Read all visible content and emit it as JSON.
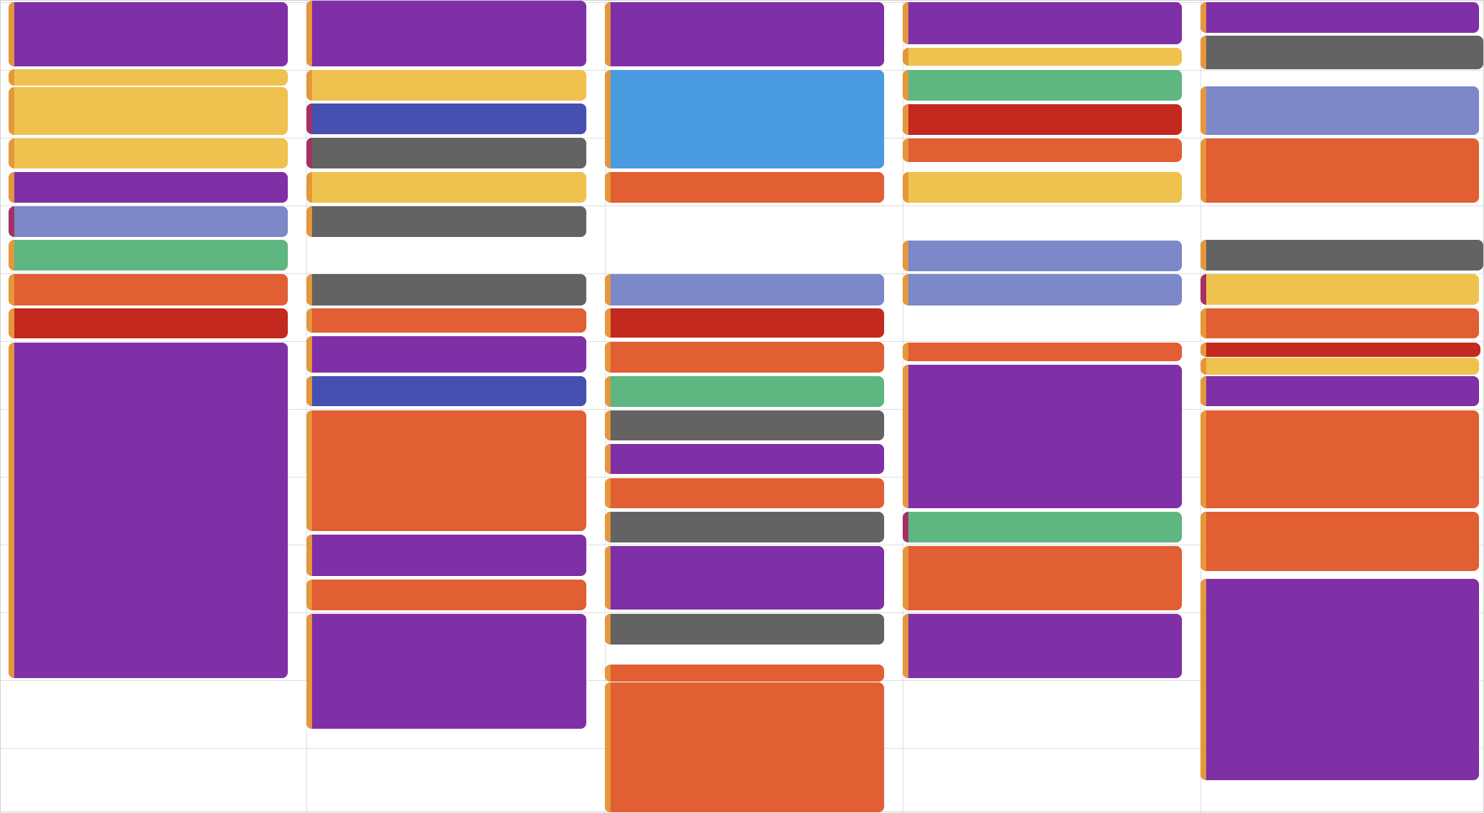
{
  "calendar": {
    "view": "week",
    "colors": {
      "purple": "#8030A6",
      "yellow": "#EFC14E",
      "blue": "#4550B0",
      "gray": "#636363",
      "sky": "#4A9AE0",
      "orange": "#E25E33",
      "green": "#5EB680",
      "red": "#C3291F",
      "lavender": "#7C88C8",
      "accent_orange": "#E4973B",
      "accent_magenta": "#A53064"
    },
    "days": [
      {
        "events": [
          {
            "color": "purple",
            "accent": "accent_orange"
          },
          {
            "color": "yellow",
            "accent": "accent_orange"
          },
          {
            "color": "yellow",
            "accent": "accent_orange"
          },
          {
            "color": "yellow",
            "accent": "accent_orange"
          },
          {
            "color": "purple",
            "accent": "accent_orange"
          },
          {
            "color": "lavender",
            "accent": "accent_magenta"
          },
          {
            "color": "green",
            "accent": "accent_orange"
          },
          {
            "color": "orange",
            "accent": "accent_orange"
          },
          {
            "color": "red",
            "accent": "accent_orange"
          },
          {
            "color": "purple",
            "accent": "accent_orange"
          }
        ]
      },
      {
        "events": [
          {
            "color": "purple",
            "accent": "accent_orange"
          },
          {
            "color": "yellow",
            "accent": "accent_orange"
          },
          {
            "color": "blue",
            "accent": "accent_magenta"
          },
          {
            "color": "gray",
            "accent": "accent_magenta"
          },
          {
            "color": "yellow",
            "accent": "accent_orange"
          },
          {
            "color": "gray",
            "accent": "accent_orange"
          },
          {
            "color": "gray",
            "accent": "accent_orange"
          },
          {
            "color": "orange",
            "accent": "accent_orange"
          },
          {
            "color": "purple",
            "accent": "accent_orange"
          },
          {
            "color": "blue",
            "accent": "accent_orange"
          },
          {
            "color": "orange",
            "accent": "accent_orange"
          },
          {
            "color": "purple",
            "accent": "accent_orange"
          },
          {
            "color": "orange",
            "accent": "accent_orange"
          },
          {
            "color": "purple",
            "accent": "accent_orange"
          }
        ]
      },
      {
        "events": [
          {
            "color": "purple",
            "accent": "accent_orange"
          },
          {
            "color": "sky",
            "accent": "accent_orange"
          },
          {
            "color": "orange",
            "accent": "accent_orange"
          },
          {
            "color": "lavender",
            "accent": "accent_orange"
          },
          {
            "color": "red",
            "accent": "accent_orange"
          },
          {
            "color": "orange",
            "accent": "accent_orange"
          },
          {
            "color": "green",
            "accent": "accent_orange"
          },
          {
            "color": "gray",
            "accent": "accent_orange"
          },
          {
            "color": "purple",
            "accent": "accent_orange"
          },
          {
            "color": "orange",
            "accent": "accent_orange"
          },
          {
            "color": "gray",
            "accent": "accent_orange"
          },
          {
            "color": "purple",
            "accent": "accent_orange"
          },
          {
            "color": "gray",
            "accent": "accent_orange"
          },
          {
            "color": "orange",
            "accent": "accent_orange"
          },
          {
            "color": "orange",
            "accent": "accent_orange"
          }
        ]
      },
      {
        "events": [
          {
            "color": "purple",
            "accent": "accent_orange"
          },
          {
            "color": "yellow",
            "accent": "accent_orange"
          },
          {
            "color": "green",
            "accent": "accent_orange"
          },
          {
            "color": "red",
            "accent": "accent_orange"
          },
          {
            "color": "orange",
            "accent": "accent_orange"
          },
          {
            "color": "yellow",
            "accent": "accent_orange"
          },
          {
            "color": "lavender",
            "accent": "accent_orange"
          },
          {
            "color": "lavender",
            "accent": "accent_orange"
          },
          {
            "color": "orange",
            "accent": "accent_orange"
          },
          {
            "color": "purple",
            "accent": "accent_orange"
          },
          {
            "color": "green",
            "accent": "accent_magenta"
          },
          {
            "color": "orange",
            "accent": "accent_orange"
          },
          {
            "color": "purple",
            "accent": "accent_orange"
          }
        ]
      },
      {
        "events": [
          {
            "color": "purple",
            "accent": "accent_orange"
          },
          {
            "color": "gray",
            "accent": "accent_orange"
          },
          {
            "color": "lavender",
            "accent": "accent_orange"
          },
          {
            "color": "orange",
            "accent": "accent_orange"
          },
          {
            "color": "gray",
            "accent": "accent_orange"
          },
          {
            "color": "yellow",
            "accent": "accent_magenta"
          },
          {
            "color": "orange",
            "accent": "accent_orange"
          },
          {
            "color": "red",
            "accent": "accent_orange"
          },
          {
            "color": "yellow",
            "accent": "accent_orange"
          },
          {
            "color": "purple",
            "accent": "accent_orange"
          },
          {
            "color": "orange",
            "accent": "accent_orange"
          },
          {
            "color": "orange",
            "accent": "accent_orange"
          },
          {
            "color": "purple",
            "accent": "accent_orange"
          }
        ]
      }
    ]
  }
}
